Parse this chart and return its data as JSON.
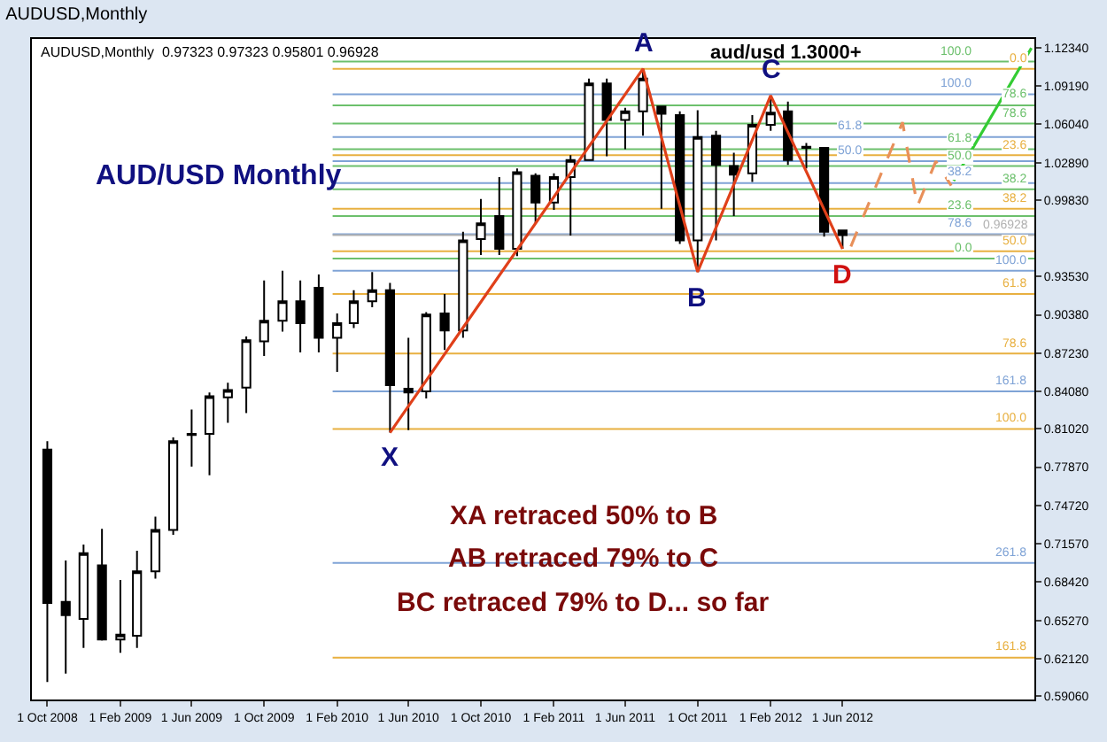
{
  "chart_data": {
    "type": "candlestick",
    "title": "AUDUSD,Monthly",
    "subtitle": "AUDUSD,Monthly  0.97323 0.97323 0.95801 0.96928",
    "xlim": [
      "2008-09-05",
      "2013-04-20"
    ],
    "xticks": [
      {
        "value": "2008-10-01",
        "label": "1 Oct 2008"
      },
      {
        "value": "2009-02-01",
        "label": "1 Feb 2009"
      },
      {
        "value": "2009-06-01",
        "label": "1 Jun 2009"
      },
      {
        "value": "2009-10-01",
        "label": "1 Oct 2009"
      },
      {
        "value": "2010-02-01",
        "label": "1 Feb 2010"
      },
      {
        "value": "2010-06-01",
        "label": "1 Jun 2010"
      },
      {
        "value": "2010-10-01",
        "label": "1 Oct 2010"
      },
      {
        "value": "2011-02-01",
        "label": "1 Feb 2011"
      },
      {
        "value": "2011-06-01",
        "label": "1 Jun 2011"
      },
      {
        "value": "2011-10-01",
        "label": "1 Oct 2011"
      },
      {
        "value": "2012-02-01",
        "label": "1 Feb 2012"
      },
      {
        "value": "2012-06-01",
        "label": "1 Jun 2012"
      }
    ],
    "ylim": [
      0.5877,
      1.1305
    ],
    "yticks": [
      {
        "value": 0.5906,
        "label": "0.59060"
      },
      {
        "value": 0.6212,
        "label": "0.62120"
      },
      {
        "value": 0.6527,
        "label": "0.65270"
      },
      {
        "value": 0.6842,
        "label": "0.68420"
      },
      {
        "value": 0.7157,
        "label": "0.71570"
      },
      {
        "value": 0.7472,
        "label": "0.74720"
      },
      {
        "value": 0.7787,
        "label": "0.77870"
      },
      {
        "value": 0.8102,
        "label": "0.81020"
      },
      {
        "value": 0.8408,
        "label": "0.84080"
      },
      {
        "value": 0.8723,
        "label": "0.87230"
      },
      {
        "value": 0.9038,
        "label": "0.90380"
      },
      {
        "value": 0.9353,
        "label": "0.93530"
      },
      {
        "value": 0.9983,
        "label": "0.99830"
      },
      {
        "value": 1.0289,
        "label": "1.02890"
      },
      {
        "value": 1.0604,
        "label": "1.06040"
      },
      {
        "value": 1.0919,
        "label": "1.09190"
      },
      {
        "value": 1.1234,
        "label": "1.12340"
      }
    ],
    "grid": false,
    "series": [
      {
        "type": "line",
        "color": "#e0401a",
        "x": [
          "2010-05-01",
          "2011-07-01",
          "2011-10-01",
          "2012-02-01",
          "2012-06-01"
        ],
        "values": [
          0.807,
          1.106,
          0.939,
          1.084,
          0.958
        ]
      },
      {
        "type": "line",
        "color": "#e8905a",
        "line_style": "dashed",
        "x": [
          "2012-06-15",
          "2012-09-10",
          "2012-10-05",
          "2012-11-05",
          "2012-12-01"
        ],
        "values": [
          0.96,
          1.062,
          0.993,
          1.03,
          1.01
        ]
      },
      {
        "type": "line",
        "color": "#33cc33",
        "x": [
          "2012-12-05",
          "2013-04-15"
        ],
        "values": [
          1.014,
          1.123
        ]
      },
      {
        "color": "#000000",
        "x": [
          "2008-10",
          "2008-11",
          "2008-12",
          "2009-01",
          "2009-02",
          "2009-03",
          "2009-04",
          "2009-05",
          "2009-06",
          "2009-07",
          "2009-08",
          "2009-09",
          "2009-10",
          "2009-11",
          "2009-12",
          "2010-01",
          "2010-02",
          "2010-03",
          "2010-04",
          "2010-05",
          "2010-06",
          "2010-07",
          "2010-08",
          "2010-09",
          "2010-10",
          "2010-11",
          "2010-12",
          "2011-01",
          "2011-02",
          "2011-03",
          "2011-04",
          "2011-05",
          "2011-06",
          "2011-07",
          "2011-08",
          "2011-09",
          "2011-10",
          "2011-11",
          "2011-12",
          "2012-01",
          "2012-02",
          "2012-03",
          "2012-04",
          "2012-05",
          "2012-06"
        ],
        "ohlc": [
          [
            0.793,
            0.8,
            0.602,
            0.667
          ],
          [
            0.668,
            0.702,
            0.609,
            0.657
          ],
          [
            0.654,
            0.715,
            0.63,
            0.708
          ],
          [
            0.698,
            0.728,
            0.636,
            0.637
          ],
          [
            0.637,
            0.686,
            0.626,
            0.641
          ],
          [
            0.64,
            0.71,
            0.63,
            0.693
          ],
          [
            0.693,
            0.738,
            0.687,
            0.727
          ],
          [
            0.727,
            0.803,
            0.723,
            0.8
          ],
          [
            0.805,
            0.826,
            0.779,
            0.806
          ],
          [
            0.806,
            0.84,
            0.772,
            0.837
          ],
          [
            0.836,
            0.848,
            0.815,
            0.842
          ],
          [
            0.844,
            0.886,
            0.823,
            0.883
          ],
          [
            0.882,
            0.932,
            0.87,
            0.899
          ],
          [
            0.899,
            0.94,
            0.89,
            0.915
          ],
          [
            0.915,
            0.932,
            0.873,
            0.897
          ],
          [
            0.926,
            0.937,
            0.873,
            0.885
          ],
          [
            0.885,
            0.905,
            0.857,
            0.897
          ],
          [
            0.897,
            0.924,
            0.893,
            0.915
          ],
          [
            0.915,
            0.939,
            0.91,
            0.924
          ],
          [
            0.924,
            0.93,
            0.807,
            0.846
          ],
          [
            0.843,
            0.885,
            0.809,
            0.84
          ],
          [
            0.841,
            0.906,
            0.835,
            0.904
          ],
          [
            0.905,
            0.921,
            0.875,
            0.891
          ],
          [
            0.891,
            0.972,
            0.885,
            0.965
          ],
          [
            0.966,
            0.999,
            0.953,
            0.979
          ],
          [
            0.985,
            1.017,
            0.953,
            0.958
          ],
          [
            0.958,
            1.024,
            0.952,
            1.021
          ],
          [
            1.018,
            1.02,
            0.979,
            0.996
          ],
          [
            0.996,
            1.02,
            0.99,
            1.017
          ],
          [
            1.017,
            1.035,
            0.969,
            1.031
          ],
          [
            1.031,
            1.098,
            1.031,
            1.094
          ],
          [
            1.094,
            1.098,
            1.034,
            1.064
          ],
          [
            1.064,
            1.074,
            1.04,
            1.071
          ],
          [
            1.071,
            1.106,
            1.051,
            1.098
          ],
          [
            1.075,
            1.075,
            0.991,
            1.069
          ],
          [
            1.068,
            1.071,
            0.962,
            0.965
          ],
          [
            0.965,
            1.072,
            0.939,
            1.05
          ],
          [
            1.051,
            1.055,
            0.965,
            1.027
          ],
          [
            1.026,
            1.037,
            0.985,
            1.019
          ],
          [
            1.02,
            1.068,
            1.013,
            1.06
          ],
          [
            1.06,
            1.084,
            1.055,
            1.07
          ],
          [
            1.071,
            1.079,
            1.027,
            1.031
          ],
          [
            1.042,
            1.045,
            1.024,
            1.041
          ],
          [
            1.041,
            1.041,
            0.968,
            0.972
          ],
          [
            0.97323,
            0.97323,
            0.95801,
            0.96928
          ]
        ]
      }
    ],
    "ref_lines": [
      {
        "axis": "y",
        "value": 1.106,
        "color": "#e8b040"
      },
      {
        "axis": "y",
        "value": 1.035,
        "color": "#e8b040"
      },
      {
        "axis": "y",
        "value": 0.991,
        "color": "#e8b040"
      },
      {
        "axis": "y",
        "value": 0.956,
        "color": "#e8b040"
      },
      {
        "axis": "y",
        "value": 0.921,
        "color": "#e8b040"
      },
      {
        "axis": "y",
        "value": 0.872,
        "color": "#e8b040"
      },
      {
        "axis": "y",
        "value": 0.81,
        "color": "#e8b040"
      },
      {
        "axis": "y",
        "value": 0.622,
        "color": "#e8b040"
      },
      {
        "axis": "y",
        "value": 1.112,
        "color": "#6cc06c"
      },
      {
        "axis": "y",
        "value": 1.076,
        "color": "#6cc06c"
      },
      {
        "axis": "y",
        "value": 1.061,
        "color": "#6cc06c"
      },
      {
        "axis": "y",
        "value": 1.04,
        "color": "#6cc06c"
      },
      {
        "axis": "y",
        "value": 1.026,
        "color": "#6cc06c"
      },
      {
        "axis": "y",
        "value": 1.007,
        "color": "#6cc06c"
      },
      {
        "axis": "y",
        "value": 0.985,
        "color": "#6cc06c"
      },
      {
        "axis": "y",
        "value": 0.95,
        "color": "#6cc06c"
      },
      {
        "axis": "y",
        "value": 1.085,
        "color": "#7fa3d6"
      },
      {
        "axis": "y",
        "value": 1.05,
        "color": "#7fa3d6"
      },
      {
        "axis": "y",
        "value": 1.03,
        "color": "#7fa3d6"
      },
      {
        "axis": "y",
        "value": 1.012,
        "color": "#7fa3d6"
      },
      {
        "axis": "y",
        "value": 0.97,
        "color": "#7fa3d6"
      },
      {
        "axis": "y",
        "value": 0.94,
        "color": "#7fa3d6"
      },
      {
        "axis": "y",
        "value": 0.841,
        "color": "#7fa3d6"
      },
      {
        "axis": "y",
        "value": 0.7,
        "color": "#7fa3d6"
      },
      {
        "axis": "y",
        "value": 0.96928,
        "label": "0.96928",
        "color": "#b0b0b0"
      }
    ],
    "annotations": [
      "AUD/USD Monthly",
      "aud/usd 1.3000+",
      "XA retraced 50% to B",
      "AB retraced 79% to C",
      "BC retraced 79% to D... so far",
      {
        "text": "X",
        "x": "2010-05-01",
        "y": 0.807
      },
      {
        "text": "A",
        "x": "2011-07-01",
        "y": 1.106
      },
      {
        "text": "B",
        "x": "2011-10-01",
        "y": 0.939
      },
      {
        "text": "C",
        "x": "2012-02-01",
        "y": 1.084
      },
      {
        "text": "D",
        "x": "2012-06-01",
        "y": 0.958
      },
      {
        "text": "0.0",
        "y": 1.106
      },
      {
        "text": "23.6",
        "y": 1.035
      },
      {
        "text": "38.2",
        "y": 0.991
      },
      {
        "text": "50.0",
        "y": 0.956
      },
      {
        "text": "61.8",
        "y": 0.921
      },
      {
        "text": "78.6",
        "y": 0.872
      },
      {
        "text": "100.0",
        "y": 0.81
      },
      {
        "text": "161.8",
        "y": 0.622
      },
      {
        "text": "100.0",
        "y": 1.112
      },
      {
        "text": "78.6",
        "y": 1.076
      },
      {
        "text": "78.6",
        "y": 1.061
      },
      {
        "text": "61.8",
        "y": 1.04
      },
      {
        "text": "50.0",
        "y": 1.026
      },
      {
        "text": "38.2",
        "y": 1.007
      },
      {
        "text": "23.6",
        "y": 0.985
      },
      {
        "text": "0.0",
        "y": 0.95
      },
      {
        "text": "100.0",
        "y": 1.085
      },
      {
        "text": "61.8",
        "y": 1.05
      },
      {
        "text": "50.0",
        "y": 1.03
      },
      {
        "text": "38.2",
        "y": 1.012
      },
      {
        "text": "78.6",
        "y": 0.97
      },
      {
        "text": "100.0",
        "y": 0.94
      },
      {
        "text": "161.8",
        "y": 0.841
      },
      {
        "text": "261.8",
        "y": 0.7
      }
    ]
  }
}
